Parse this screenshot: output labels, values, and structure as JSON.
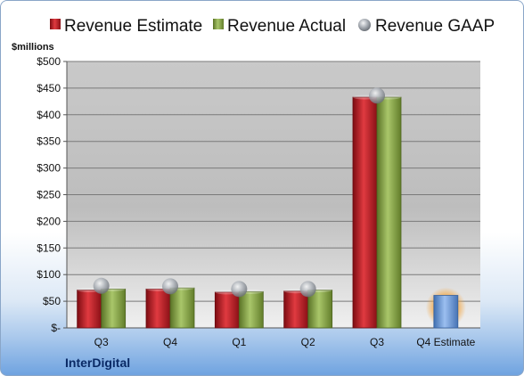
{
  "chart_data": {
    "type": "bar",
    "company": "InterDigital",
    "unit_label": "$millions",
    "categories": [
      "Q3",
      "Q4",
      "Q1",
      "Q2",
      "Q3",
      "Q4 Estimate"
    ],
    "ylim": [
      0,
      500
    ],
    "yticks": [
      0,
      50,
      100,
      150,
      200,
      250,
      300,
      350,
      400,
      450,
      500
    ],
    "ytick_labels": [
      "$-",
      "$50",
      "$100",
      "$150",
      "$200",
      "$250",
      "$300",
      "$350",
      "$400",
      "$450",
      "$500"
    ],
    "grid": true,
    "legend_position": "top",
    "series": [
      {
        "name": "Revenue Estimate",
        "marker": "bar",
        "color": "#c8202a",
        "values": [
          71,
          73,
          67,
          69,
          433,
          null
        ]
      },
      {
        "name": "Revenue Actual",
        "marker": "bar",
        "color": "#8eab4c",
        "values": [
          73,
          75,
          68,
          71,
          433,
          null
        ]
      },
      {
        "name": "Revenue GAAP",
        "marker": "sphere",
        "color": "#9aa0a8",
        "values": [
          79,
          78,
          73,
          73,
          436,
          null
        ]
      },
      {
        "name": "Q4 Estimate",
        "marker": "bar",
        "color": "#6f9bd4",
        "values": [
          null,
          null,
          null,
          null,
          null,
          61
        ]
      }
    ]
  }
}
